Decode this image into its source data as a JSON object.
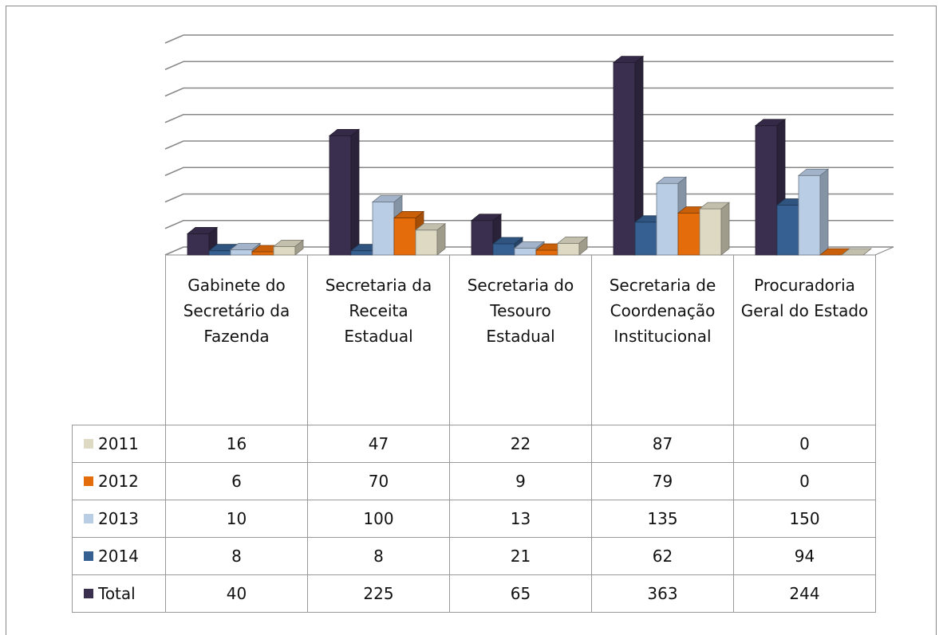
{
  "chart_data": {
    "type": "bar3d",
    "categories": [
      "Gabinete do Secretário da Fazenda",
      "Secretaria da Receita Estadual",
      "Secretaria do Tesouro Estadual",
      "Secretaria de Coordenação Institucional",
      "Procuradoria Geral do Estado"
    ],
    "series": [
      {
        "name": "2011",
        "color": "#ddd9c3",
        "values": [
          16,
          47,
          22,
          87,
          0
        ]
      },
      {
        "name": "2012",
        "color": "#e46c0a",
        "values": [
          6,
          70,
          9,
          79,
          0
        ]
      },
      {
        "name": "2013",
        "color": "#b9cde5",
        "values": [
          10,
          100,
          13,
          135,
          150
        ]
      },
      {
        "name": "2014",
        "color": "#376092",
        "values": [
          8,
          8,
          21,
          62,
          94
        ]
      },
      {
        "name": "Total",
        "color": "#3b2f4f",
        "values": [
          40,
          225,
          65,
          363,
          244
        ]
      }
    ],
    "ylim": [
      0,
      400
    ],
    "yticks": [
      0,
      50,
      100,
      150,
      200,
      250,
      300,
      350,
      400
    ],
    "grid": true,
    "legend": "table"
  }
}
